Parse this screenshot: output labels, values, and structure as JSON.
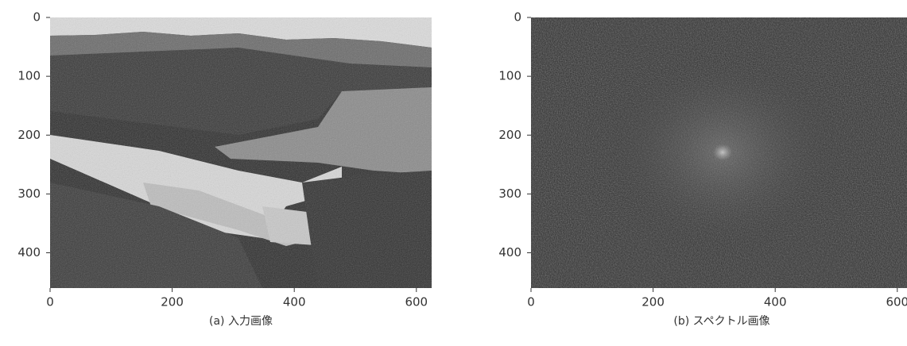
{
  "chart_data": [
    {
      "type": "image",
      "caption": "(a) 入力画像",
      "xlim": [
        0,
        625
      ],
      "ylim": [
        0,
        460
      ],
      "invert_y": true,
      "xticks": [
        0,
        200,
        400,
        600
      ],
      "yticks": [
        0,
        100,
        200,
        300,
        400
      ]
    },
    {
      "type": "image",
      "caption": "(b) スペクトル画像",
      "xlim": [
        0,
        625
      ],
      "ylim": [
        0,
        460
      ],
      "invert_y": true,
      "xticks": [
        0,
        200,
        400,
        600
      ],
      "yticks": [
        0,
        100,
        200,
        300,
        400
      ]
    }
  ]
}
